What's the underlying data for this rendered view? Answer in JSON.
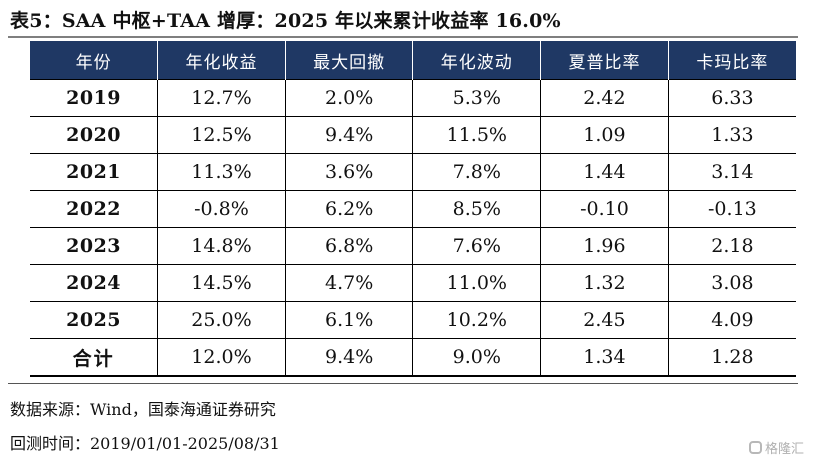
{
  "title": "表5：SAA 中枢+TAA 增厚：2025 年以来累计收益率 16.0%",
  "table": {
    "headers": [
      "年份",
      "年化收益",
      "最大回撤",
      "年化波动",
      "夏普比率",
      "卡玛比率"
    ],
    "rows": [
      [
        "2019",
        "12.7%",
        "2.0%",
        "5.3%",
        "2.42",
        "6.33"
      ],
      [
        "2020",
        "12.5%",
        "9.4%",
        "11.5%",
        "1.09",
        "1.33"
      ],
      [
        "2021",
        "11.3%",
        "3.6%",
        "7.8%",
        "1.44",
        "3.14"
      ],
      [
        "2022",
        "-0.8%",
        "6.2%",
        "8.5%",
        "-0.10",
        "-0.13"
      ],
      [
        "2023",
        "14.8%",
        "6.8%",
        "7.6%",
        "1.96",
        "2.18"
      ],
      [
        "2024",
        "14.5%",
        "4.7%",
        "11.0%",
        "1.32",
        "3.08"
      ],
      [
        "2025",
        "25.0%",
        "6.1%",
        "10.2%",
        "2.45",
        "4.09"
      ],
      [
        "合计",
        "12.0%",
        "9.4%",
        "9.0%",
        "1.34",
        "1.28"
      ]
    ]
  },
  "source_note": "数据来源：Wind，国泰海通证券研究",
  "period_note": "回测时间：2019/01/01-2025/08/31",
  "watermark": "格隆汇",
  "colors": {
    "header_bg": "#1f3864",
    "header_text": "#ffffff"
  }
}
